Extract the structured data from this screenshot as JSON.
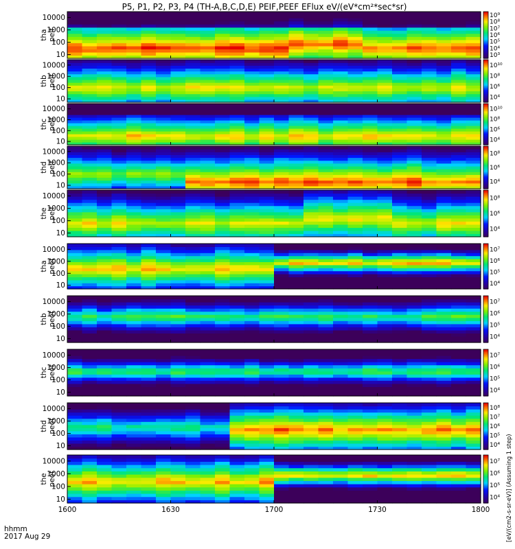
{
  "title": "P5, P1, P2, P3, P4 (TH-A,B,C,D,E) PEIF,PEEF EFlux eV/(eV*cm²*sec*sr)",
  "x_label_line1": "hhmm",
  "x_label_line2": "2017 Aug 29",
  "colorbar_unit": "[eV/(cm2-s-sr-eV)] (Assuming 1 step)",
  "chart_data": {
    "type": "heatmap",
    "x": {
      "range": [
        "16:00",
        "18:00"
      ],
      "tick_labels": [
        "1600",
        "1630",
        "1700",
        "1730",
        "1800"
      ],
      "date": "2017 Aug 29"
    },
    "y": {
      "scale": "log",
      "unit": "eV",
      "range": [
        5,
        30000
      ],
      "tick_labels": [
        "10",
        "100",
        "1000",
        "10000"
      ]
    },
    "colormap": "rainbow (purple-blue-cyan-green-yellow-red)",
    "panels": [
      {
        "probe": "tha",
        "species": "peif",
        "label_line1": "tha",
        "label_line2": "peif",
        "colorbar_range": [
          1000,
          1000000000
        ],
        "colorbar_labels": [
          "10³",
          "10⁴",
          "10⁵",
          "10⁶",
          "10⁷",
          "10⁸",
          "10⁹"
        ]
      },
      {
        "probe": "thb",
        "species": "peif",
        "label_line1": "thb",
        "label_line2": "peif",
        "colorbar_range": [
          1000,
          10000000000
        ],
        "colorbar_labels": [
          "10⁴",
          "10⁶",
          "10⁸",
          "10¹⁰"
        ]
      },
      {
        "probe": "thc",
        "species": "peif",
        "label_line1": "thc",
        "label_line2": "peif",
        "colorbar_range": [
          1000,
          10000000000
        ],
        "colorbar_labels": [
          "10⁴",
          "10⁶",
          "10⁸",
          "10¹⁰"
        ]
      },
      {
        "probe": "thd",
        "species": "peif",
        "label_line1": "thd",
        "label_line2": "peif",
        "colorbar_range": [
          1000,
          1000000000
        ],
        "colorbar_labels": [
          "10⁴",
          "10⁶",
          "10⁸"
        ]
      },
      {
        "probe": "the",
        "species": "peif",
        "label_line1": "the",
        "label_line2": "peif",
        "colorbar_range": [
          1000,
          1000000000
        ],
        "colorbar_labels": [
          "10⁴",
          "10⁶",
          "10⁸"
        ]
      },
      {
        "probe": "tha",
        "species": "peef",
        "label_line1": "tha",
        "label_line2": "peef",
        "colorbar_range": [
          10000,
          10000000
        ],
        "colorbar_labels": [
          "10⁴",
          "10⁵",
          "10⁶",
          "10⁷"
        ]
      },
      {
        "probe": "thb",
        "species": "peef",
        "label_line1": "thb",
        "label_line2": "peef",
        "colorbar_range": [
          10000,
          10000000
        ],
        "colorbar_labels": [
          "10⁴",
          "10⁵",
          "10⁶",
          "10⁷"
        ]
      },
      {
        "probe": "thc",
        "species": "peef",
        "label_line1": "thc",
        "label_line2": "peef",
        "colorbar_range": [
          10000,
          10000000
        ],
        "colorbar_labels": [
          "10⁴",
          "10⁵",
          "10⁶",
          "10⁷"
        ]
      },
      {
        "probe": "thd",
        "species": "peef",
        "label_line1": "thd",
        "label_line2": "peef",
        "colorbar_range": [
          10000,
          100000000
        ],
        "colorbar_labels": [
          "10⁴",
          "10⁵",
          "10⁶",
          "10⁷",
          "10⁸"
        ]
      },
      {
        "probe": "the",
        "species": "peef",
        "label_line1": "the",
        "label_line2": "peef",
        "colorbar_range": [
          10000,
          10000000
        ],
        "colorbar_labels": [
          "10⁴",
          "10⁵",
          "10⁶",
          "10⁷"
        ]
      }
    ]
  }
}
